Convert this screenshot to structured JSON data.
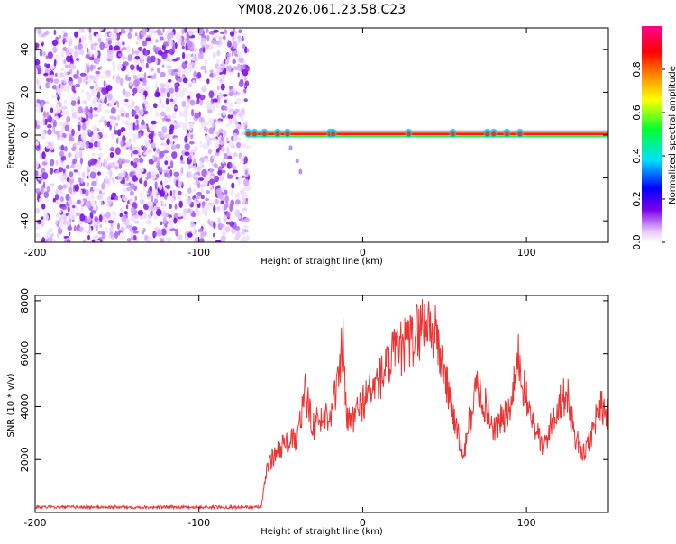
{
  "chart_data": [
    {
      "type": "heatmap",
      "title": "YM08.2026.061.23.58.C23",
      "xlabel": "Height of straight line (km)",
      "ylabel": "Frequency (Hz)",
      "xlim": [
        -200,
        150
      ],
      "ylim": [
        -50,
        50
      ],
      "xticks": [
        -200,
        -100,
        0,
        100
      ],
      "xtick_labels": [
        "-200",
        "-100",
        "0",
        "100"
      ],
      "yticks": [
        -40,
        -20,
        0,
        20,
        40
      ],
      "ytick_labels": [
        "-40",
        "-20",
        "0",
        "20",
        "40"
      ],
      "noise_region_x": [
        -200,
        -70
      ],
      "signal_line": {
        "x": [
          -70,
          150
        ],
        "frequency_hz": 0.5
      },
      "colorbar": {
        "label": "Normalized spectral amplitude",
        "range": [
          0,
          1
        ],
        "ticks": [
          0.0,
          0.2,
          0.4,
          0.6,
          0.8
        ],
        "tick_labels": [
          "0.0",
          "0.2",
          "0.4",
          "0.6",
          "0.8"
        ]
      }
    },
    {
      "type": "line",
      "xlabel": "Height of straight line (km)",
      "ylabel": "SNR (10 * v/v)",
      "xlim": [
        -200,
        150
      ],
      "ylim": [
        0,
        8200
      ],
      "xticks": [
        -200,
        -100,
        0,
        100
      ],
      "xtick_labels": [
        "-200",
        "-100",
        "0",
        "100"
      ],
      "yticks": [
        2000,
        4000,
        6000,
        8000
      ],
      "ytick_labels": [
        "2000",
        "4000",
        "6000",
        "8000"
      ],
      "series": [
        {
          "name": "SNR",
          "color": "#ee3333",
          "x": [
            -200,
            -150,
            -100,
            -62,
            -58,
            -50,
            -40,
            -35,
            -30,
            -20,
            -15,
            -12,
            -10,
            -5,
            0,
            10,
            20,
            30,
            35,
            40,
            45,
            50,
            60,
            62,
            65,
            70,
            80,
            90,
            95,
            100,
            110,
            120,
            125,
            130,
            135,
            140,
            145,
            150
          ],
          "values": [
            200,
            200,
            200,
            200,
            1800,
            2500,
            2800,
            4500,
            3300,
            3800,
            4800,
            6500,
            3400,
            3600,
            4200,
            5000,
            6000,
            6500,
            7000,
            7200,
            6600,
            5200,
            2400,
            2200,
            3400,
            4800,
            3200,
            3800,
            5800,
            4200,
            2400,
            4200,
            4400,
            2800,
            2200,
            3000,
            4200,
            3600
          ]
        }
      ]
    }
  ]
}
